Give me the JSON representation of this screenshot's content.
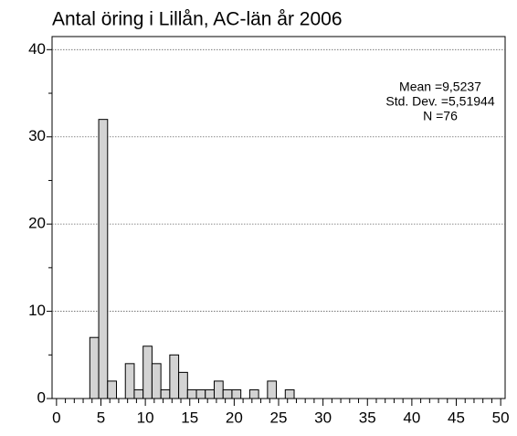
{
  "chart_data": {
    "type": "histogram",
    "title": "Antal öring i Lillån, AC-län år 2006",
    "annotations": [
      "Mean =9,5237",
      "Std. Dev. =5,51944",
      "N =76"
    ],
    "bins": [
      3.75,
      4.75,
      5.75,
      6.75,
      7.75,
      8.75,
      9.75,
      10.75,
      11.75,
      12.75,
      13.75,
      14.75,
      15.75,
      16.75,
      17.75,
      18.75,
      19.75,
      20.75,
      21.75,
      22.75,
      23.75,
      24.75,
      25.75,
      26.75
    ],
    "values": [
      7,
      32,
      2,
      0,
      4,
      1,
      6,
      4,
      1,
      5,
      3,
      1,
      1,
      1,
      2,
      1,
      1,
      0,
      1,
      0,
      2,
      0,
      1
    ],
    "color": "#d3d3d3",
    "xlim": [
      -0.5,
      50.5
    ],
    "xticks": [
      0,
      5,
      10,
      15,
      20,
      25,
      30,
      35,
      40,
      45,
      50
    ],
    "ylim": [
      0,
      41.5
    ],
    "yticks": [
      0,
      10,
      20,
      30,
      40
    ],
    "grid": true
  }
}
